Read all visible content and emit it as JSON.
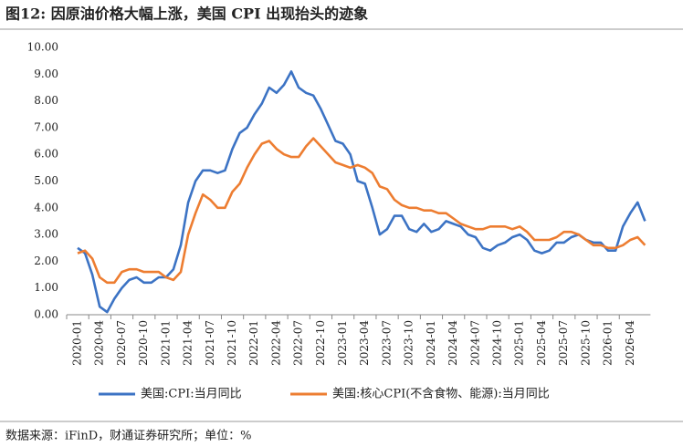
{
  "chart_data": {
    "type": "line",
    "title": "图12: 因原油价格大幅上涨，美国 CPI 出现抬头的迹象",
    "source": "数据来源：iFinD，财通证券研究所；单位：%",
    "categories": [
      "2020-01",
      null,
      null,
      "2020-04",
      null,
      null,
      "2020-07",
      null,
      null,
      "2020-10",
      null,
      null,
      "2021-01",
      null,
      null,
      "2021-04",
      null,
      null,
      "2021-07",
      null,
      null,
      "2021-10",
      null,
      null,
      "2022-01",
      null,
      null,
      "2022-04",
      null,
      null,
      "2022-07",
      null,
      null,
      "2022-10",
      null,
      null,
      "2023-01",
      null,
      null,
      "2023-04",
      null,
      null,
      "2023-07",
      null,
      null,
      "2023-10",
      null,
      null,
      "2024-01",
      null,
      null,
      "2024-04",
      null,
      null,
      "2024-07",
      null,
      null,
      "2024-10",
      null,
      null,
      "2025-01",
      null,
      null,
      "2025-04",
      null,
      null,
      "2025-07",
      null,
      null,
      "2025-10",
      null,
      null,
      "2026-01",
      null,
      null,
      "2026-04",
      null,
      null
    ],
    "series": [
      {
        "name": "美国:CPI:当月同比",
        "color": "#3c73c4",
        "values": [
          2.5,
          2.3,
          1.5,
          0.3,
          0.1,
          0.6,
          1.0,
          1.3,
          1.4,
          1.2,
          1.2,
          1.4,
          1.4,
          1.7,
          2.6,
          4.2,
          5.0,
          5.4,
          5.4,
          5.3,
          5.4,
          6.2,
          6.8,
          7.0,
          7.5,
          7.9,
          8.5,
          8.3,
          8.6,
          9.1,
          8.5,
          8.3,
          8.2,
          7.7,
          7.1,
          6.5,
          6.4,
          6.0,
          5.0,
          4.9,
          4.0,
          3.0,
          3.2,
          3.7,
          3.7,
          3.2,
          3.1,
          3.4,
          3.1,
          3.2,
          3.5,
          3.4,
          3.3,
          3.0,
          2.9,
          2.5,
          2.4,
          2.6,
          2.7,
          2.9,
          3.0,
          2.8,
          2.4,
          2.3,
          2.4,
          2.7,
          2.7,
          2.9,
          3.0,
          2.8,
          2.7,
          2.7,
          2.4,
          2.4,
          3.3,
          3.8,
          4.2,
          3.5
        ]
      },
      {
        "name": "美国:核心CPI(不含食物、能源):当月同比",
        "color": "#ed7d31",
        "values": [
          2.3,
          2.4,
          2.1,
          1.4,
          1.2,
          1.2,
          1.6,
          1.7,
          1.7,
          1.6,
          1.6,
          1.6,
          1.4,
          1.3,
          1.6,
          3.0,
          3.8,
          4.5,
          4.3,
          4.0,
          4.0,
          4.6,
          4.9,
          5.5,
          6.0,
          6.4,
          6.5,
          6.2,
          6.0,
          5.9,
          5.9,
          6.3,
          6.6,
          6.3,
          6.0,
          5.7,
          5.6,
          5.5,
          5.6,
          5.5,
          5.3,
          4.8,
          4.7,
          4.3,
          4.1,
          4.0,
          4.0,
          3.9,
          3.9,
          3.8,
          3.8,
          3.6,
          3.4,
          3.3,
          3.2,
          3.2,
          3.3,
          3.3,
          3.3,
          3.2,
          3.3,
          3.1,
          2.8,
          2.8,
          2.8,
          2.9,
          3.1,
          3.1,
          3.0,
          2.8,
          2.6,
          2.6,
          2.5,
          2.5,
          2.6,
          2.8,
          2.9,
          2.6
        ]
      }
    ],
    "ylim": [
      0,
      10
    ],
    "yticks": [
      {
        "value": 0,
        "label": "0.00"
      },
      {
        "value": 1,
        "label": "1.00"
      },
      {
        "value": 2,
        "label": "2.00"
      },
      {
        "value": 3,
        "label": "3.00"
      },
      {
        "value": 4,
        "label": "4.00"
      },
      {
        "value": 5,
        "label": "5.00"
      },
      {
        "value": 6,
        "label": "6.00"
      },
      {
        "value": 7,
        "label": "7.00"
      },
      {
        "value": 8,
        "label": "8.00"
      },
      {
        "value": 9,
        "label": "9.00"
      },
      {
        "value": 10,
        "label": "10.00"
      }
    ]
  }
}
